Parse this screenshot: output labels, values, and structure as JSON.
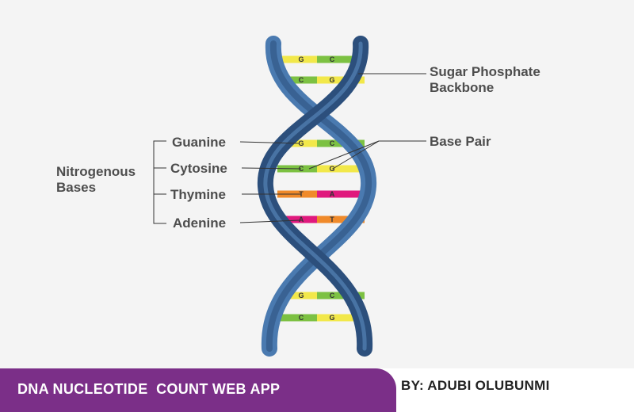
{
  "labels": {
    "backbone_line1": "Sugar Phosphate",
    "backbone_line2": "Backbone",
    "base_pair": "Base Pair",
    "nitrogenous_line1": "Nitrogenous",
    "nitrogenous_line2": "Bases",
    "guanine": "Guanine",
    "cytosine": "Cytosine",
    "thymine": "Thymine",
    "adenine": "Adenine"
  },
  "rungs": [
    {
      "left": "G",
      "right": "C",
      "left_color": "#f2e84a",
      "right_color": "#7cc142"
    },
    {
      "left": "C",
      "right": "G",
      "left_color": "#7cc142",
      "right_color": "#f2e84a"
    },
    {
      "left": "G",
      "right": "C",
      "left_color": "#f2e84a",
      "right_color": "#7cc142"
    },
    {
      "left": "C",
      "right": "G",
      "left_color": "#7cc142",
      "right_color": "#f2e84a"
    },
    {
      "left": "T",
      "right": "A",
      "left_color": "#f08a2a",
      "right_color": "#e0197d"
    },
    {
      "left": "A",
      "right": "T",
      "left_color": "#e0197d",
      "right_color": "#f08a2a"
    },
    {
      "left": "G",
      "right": "C",
      "left_color": "#f2e84a",
      "right_color": "#7cc142"
    },
    {
      "left": "C",
      "right": "G",
      "left_color": "#7cc142",
      "right_color": "#f2e84a"
    }
  ],
  "colors": {
    "strand_dark": "#2c4f7c",
    "strand_light": "#4a7ab0",
    "banner": "#7b2f88"
  },
  "footer": {
    "title": "DNA NUCLEOTIDE  COUNT WEB APP",
    "author": "BY: ADUBI OLUBUNMI"
  }
}
